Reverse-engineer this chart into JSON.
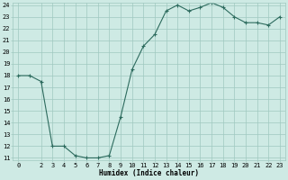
{
  "x": [
    0,
    1,
    2,
    3,
    4,
    5,
    6,
    7,
    8,
    9,
    10,
    11,
    12,
    13,
    14,
    15,
    16,
    17,
    18,
    19,
    20,
    21,
    22,
    23
  ],
  "y": [
    18.0,
    18.0,
    17.5,
    12.0,
    12.0,
    11.2,
    11.0,
    11.0,
    11.2,
    14.5,
    18.5,
    20.5,
    21.5,
    23.5,
    24.0,
    23.5,
    23.8,
    24.2,
    23.8,
    23.0,
    22.5,
    22.5,
    22.3,
    23.0
  ],
  "line_color": "#2d6b5e",
  "marker": "+",
  "markersize": 3,
  "linewidth": 0.8,
  "xlabel": "Humidex (Indice chaleur)",
  "bg_color": "#ceeae4",
  "grid_color": "#a0c8c0",
  "xlabel_fontsize": 5.5,
  "tick_fontsize": 5,
  "ylim": [
    11,
    24
  ],
  "xlim": [
    -0.5,
    23.5
  ],
  "yticks": [
    11,
    12,
    13,
    14,
    15,
    16,
    17,
    18,
    19,
    20,
    21,
    22,
    23,
    24
  ],
  "xticks": [
    0,
    2,
    3,
    4,
    5,
    6,
    7,
    8,
    9,
    10,
    11,
    12,
    13,
    14,
    15,
    16,
    17,
    18,
    19,
    20,
    21,
    22,
    23
  ]
}
